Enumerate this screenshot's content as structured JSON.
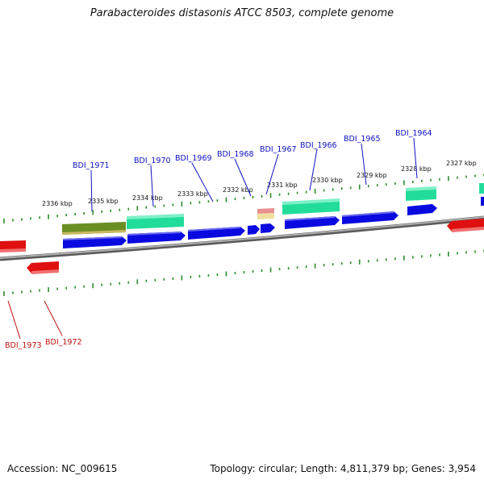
{
  "header": {
    "title": "Parabacteroides distasonis ATCC 8503, complete genome"
  },
  "footer": {
    "accession": "Accession: NC_009615",
    "topology": "Topology: circular; Length: 4,811,379 bp; Genes: 3,954"
  },
  "colors": {
    "backbone": "#8a8a8a",
    "tick": "#2e8b2e",
    "cds_forward_strand": "#0a0ae0",
    "cds_reverse_strand": "#e01010",
    "cog_teal": "#22dd99",
    "cog_olive": "#6b8e23",
    "cog_pink": "#e89090",
    "cog_yellow": "#f0e0a0",
    "top_label": "#1010c0",
    "bottom_label": "#c01010"
  },
  "kbp_labels": [
    "2336 kbp",
    "2335 kbp",
    "2334 kbp",
    "2333 kbp",
    "2332 kbp",
    "2331 kbp",
    "2330 kbp",
    "2329 kbp",
    "2328 kbp",
    "2327 kbp"
  ],
  "top_gene_labels": [
    "BDI_1971",
    "BDI_1970",
    "BDI_1969",
    "BDI_1968",
    "BDI_1967",
    "BDI_1966",
    "BDI_1965",
    "BDI_1964"
  ],
  "bottom_gene_labels": [
    "BDI_1973",
    "BDI_1972"
  ]
}
